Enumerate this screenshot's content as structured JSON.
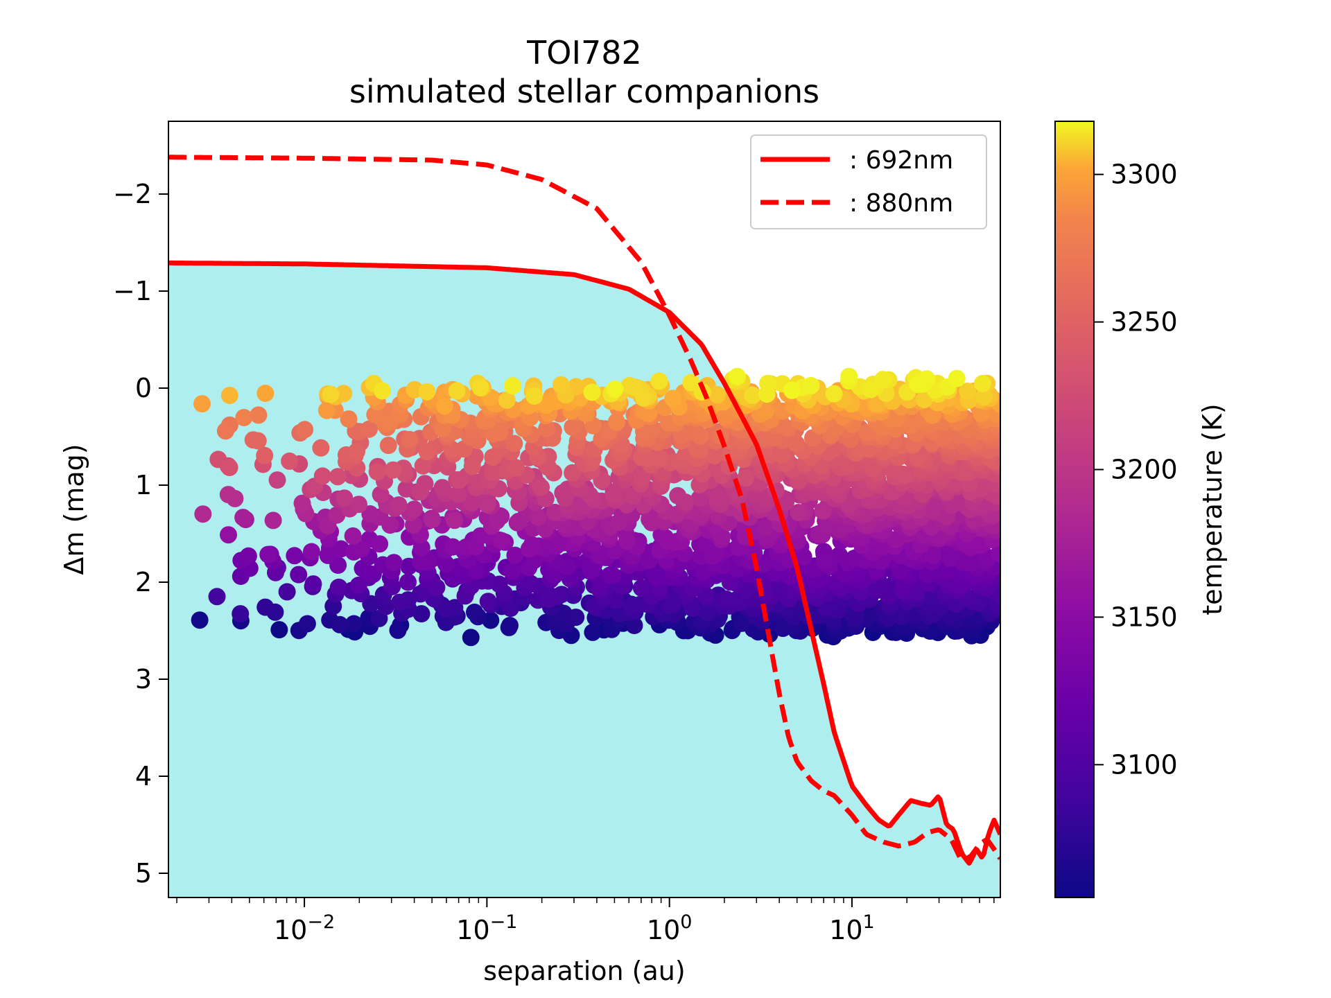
{
  "chart_data": {
    "type": "scatter",
    "title": "TOI782",
    "subtitle": "simulated stellar companions",
    "xlabel": "separation (au)",
    "ylabel": "Δm (mag)",
    "xscale": "log",
    "xlim": [
      0.0018,
      65
    ],
    "ylim": [
      5.25,
      -2.75
    ],
    "y_inverted": true,
    "x_tick_labels": [
      {
        "value": 0.01,
        "base": "10",
        "exp": "−2"
      },
      {
        "value": 0.1,
        "base": "10",
        "exp": "−1"
      },
      {
        "value": 1,
        "base": "10",
        "exp": "0"
      },
      {
        "value": 10,
        "base": "10",
        "exp": "1"
      }
    ],
    "y_ticks": [
      -2,
      -1,
      0,
      1,
      2,
      3,
      4,
      5
    ],
    "y_tick_labels": [
      "−2",
      "−1",
      "0",
      "1",
      "2",
      "3",
      "4",
      "5"
    ],
    "colorbar": {
      "label": "temperature (K)",
      "colormap": "plasma",
      "range": [
        3055,
        3318
      ],
      "ticks": [
        3100,
        3150,
        3200,
        3250,
        3300
      ],
      "tick_labels": [
        "3100",
        "3150",
        "3200",
        "3250",
        "3300"
      ]
    },
    "fill_region": {
      "color": "#afeeee",
      "description": "region below 692nm contrast curve"
    },
    "series": [
      {
        "name": ": 692nm",
        "color": "#ff0000",
        "style": "solid",
        "x": [
          0.0018,
          0.01,
          0.1,
          0.3,
          0.6,
          1.0,
          1.5,
          2.0,
          3.0,
          4.0,
          5.0,
          6.0,
          7.0,
          8.0,
          10.0,
          12.0,
          14.0,
          16.0,
          18.0,
          21.0,
          24.0,
          27.0,
          30.0,
          33.0,
          36.0,
          40.0,
          44.0,
          48.0,
          52.0,
          56.0,
          60.0,
          65.0
        ],
        "y": [
          -1.29,
          -1.28,
          -1.24,
          -1.17,
          -1.02,
          -0.78,
          -0.45,
          -0.05,
          0.58,
          1.25,
          1.85,
          2.5,
          3.05,
          3.55,
          4.1,
          4.3,
          4.45,
          4.52,
          4.4,
          4.25,
          4.28,
          4.3,
          4.2,
          4.5,
          4.55,
          4.8,
          4.9,
          4.75,
          4.85,
          4.6,
          4.45,
          4.6
        ]
      },
      {
        "name": ": 880nm",
        "color": "#ff0000",
        "style": "dashed",
        "x": [
          0.0018,
          0.01,
          0.05,
          0.1,
          0.2,
          0.4,
          0.7,
          1.0,
          1.3,
          1.6,
          2.0,
          2.5,
          3.0,
          3.5,
          4.0,
          4.5,
          5.0,
          6.0,
          7.0,
          8.0,
          10.0,
          12.0,
          15.0,
          18.0,
          22.0,
          26.0,
          30.0,
          35.0,
          40.0,
          45.0,
          50.0,
          55.0,
          60.0,
          65.0
        ],
        "y": [
          -2.38,
          -2.37,
          -2.35,
          -2.3,
          -2.15,
          -1.85,
          -1.3,
          -0.75,
          -0.3,
          0.1,
          0.6,
          1.15,
          1.85,
          2.55,
          3.15,
          3.6,
          3.85,
          4.05,
          4.15,
          4.2,
          4.4,
          4.6,
          4.68,
          4.72,
          4.68,
          4.58,
          4.55,
          4.65,
          4.88,
          4.82,
          4.7,
          4.65,
          4.75,
          4.85
        ]
      }
    ],
    "scatter_description_points": {
      "x_range": [
        0.0018,
        65
      ],
      "y_range": [
        -0.05,
        2.55
      ],
      "color_by": "temperature"
    },
    "legend_position": "upper right"
  }
}
